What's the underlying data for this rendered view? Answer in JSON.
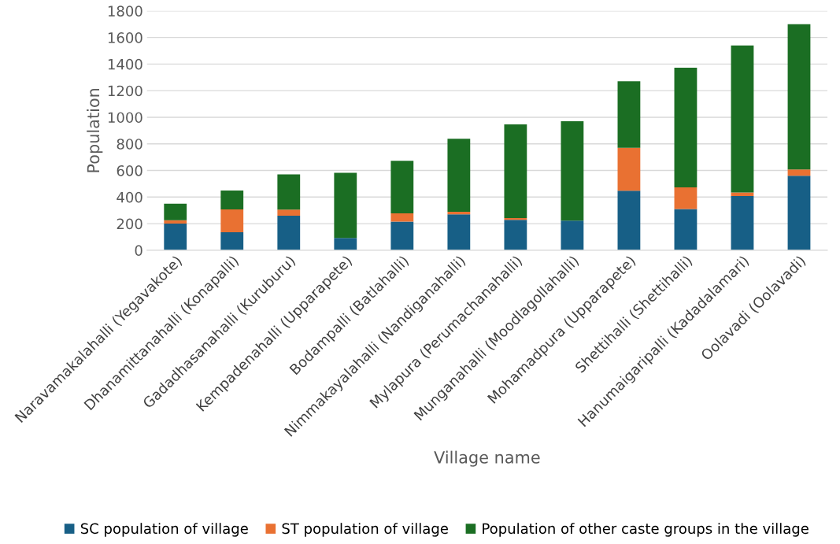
{
  "chart_data": {
    "type": "bar",
    "stacked": true,
    "xlabel": "Village name",
    "ylabel": "Population",
    "categories": [
      "Naravamakalahalli (Yegavakote)",
      "Dhanamittanahalli (Konapalli)",
      "Gadadhasanahalli (Kuruburu)",
      "Kempadenahalli (Upparapete)",
      "Bodampalli (Batlahalli)",
      "Nimmakayalahalli (Nandiganahalli)",
      "Mylapura (Perumachanahalli)",
      "Munganahalli (Moodlagollahalli)",
      "Mohamadpura (Upparapete)",
      "Shettihalli (Shettihalli)",
      "Hanumaigaripalli (Kadadalamari)",
      "Oolavadi (Oolavadi)"
    ],
    "series": [
      {
        "name": "SC population of village",
        "color": "#175f86",
        "values": [
          200,
          135,
          260,
          92,
          215,
          270,
          228,
          222,
          448,
          310,
          408,
          560
        ]
      },
      {
        "name": "ST population of village",
        "color": "#e97132",
        "values": [
          25,
          172,
          45,
          0,
          63,
          20,
          14,
          0,
          322,
          163,
          27,
          48
        ]
      },
      {
        "name": "Population of other caste groups in the village",
        "color": "#1b6e23",
        "values": [
          125,
          142,
          265,
          490,
          395,
          548,
          705,
          748,
          500,
          900,
          1105,
          1092
        ]
      }
    ],
    "ylim": [
      0,
      1800
    ],
    "yticks": [
      0,
      200,
      400,
      600,
      800,
      1000,
      1200,
      1400,
      1600,
      1800
    ],
    "grid": "y",
    "legend": "bottom"
  }
}
